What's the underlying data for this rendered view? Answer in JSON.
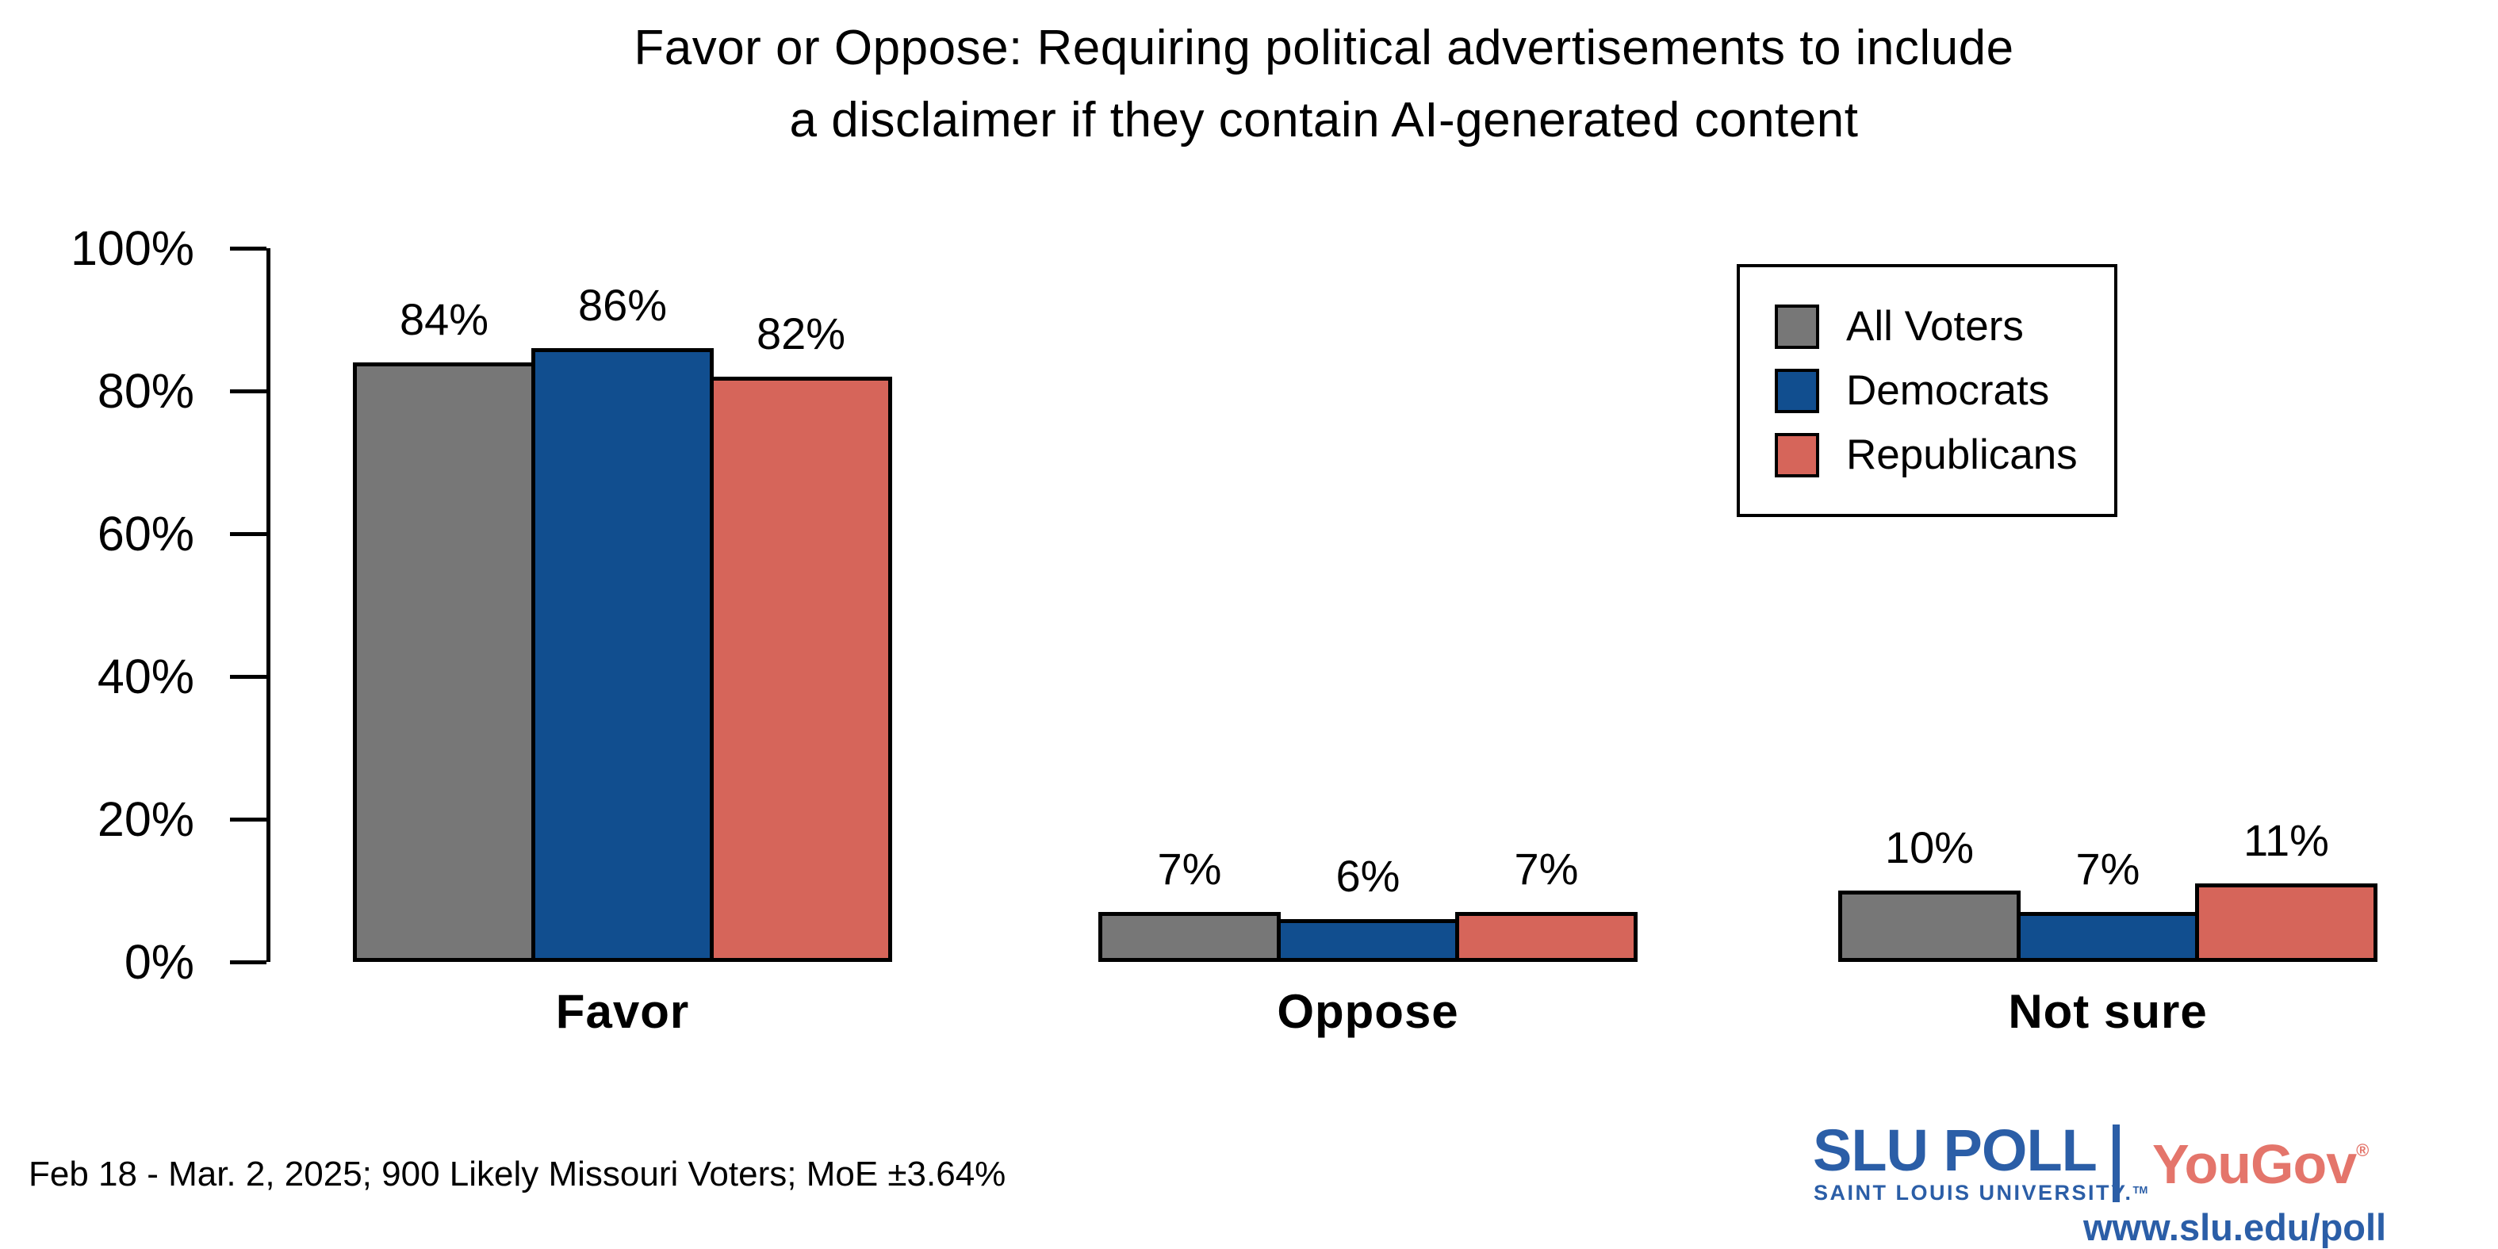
{
  "title": {
    "line1": "Favor or Oppose: Requiring political advertisements to include",
    "line2": "a disclaimer if they contain AI-generated content"
  },
  "chart_data": {
    "type": "bar",
    "categories": [
      "Favor",
      "Oppose",
      "Not sure"
    ],
    "series": [
      {
        "name": "All Voters",
        "color": "#777777",
        "values": [
          84,
          7,
          10
        ]
      },
      {
        "name": "Democrats",
        "color": "#114e8f",
        "values": [
          86,
          6,
          7
        ]
      },
      {
        "name": "Republicans",
        "color": "#d6655a",
        "values": [
          82,
          7,
          11
        ]
      }
    ],
    "value_label_format": "{v}%",
    "yticks": [
      0,
      20,
      40,
      60,
      80,
      100
    ],
    "ytick_labels": [
      "0%",
      "20%",
      "40%",
      "60%",
      "80%",
      "100%"
    ],
    "ylim": [
      0,
      100
    ],
    "grid": false,
    "legend_position": "upper-right",
    "bar_outline_color": "#000000"
  },
  "legend": {
    "items": [
      {
        "label": "All Voters",
        "color": "#777777"
      },
      {
        "label": "Democrats",
        "color": "#114e8f"
      },
      {
        "label": "Republicans",
        "color": "#d6655a"
      }
    ]
  },
  "footnote": "Feb 18 - Mar. 2, 2025; 900 Likely Missouri Voters; MoE ±3.64%",
  "branding": {
    "slu_poll": "SLU POLL",
    "slu_subtitle": "SAINT LOUIS UNIVERSITY.",
    "slu_trademark": "TM",
    "yougov": "YouGov",
    "yougov_registered": "®",
    "url": "www.slu.edu/poll",
    "slu_blue": "#2b5ea7",
    "yougov_coral": "#e4756b"
  }
}
